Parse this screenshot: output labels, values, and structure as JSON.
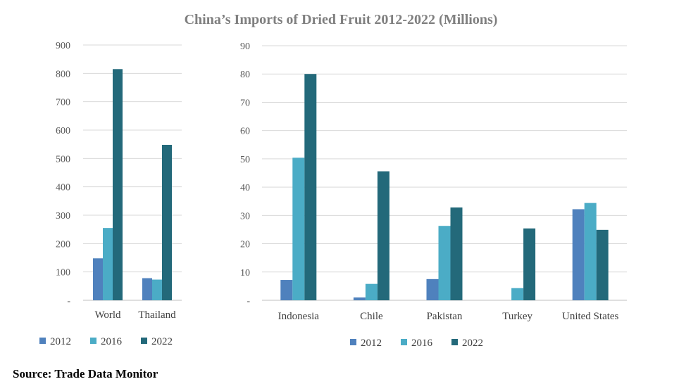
{
  "title": "China’s Imports of Dried Fruit 2012-2022 (Millions)",
  "source": "Source: Trade Data Monitor",
  "colors": {
    "2012": "#4f81bd",
    "2016": "#4bacc6",
    "2022": "#23697a",
    "title": "#7f7f7f",
    "grid": "#d9d9d9"
  },
  "chart_data": [
    {
      "type": "bar",
      "title": "",
      "xlabel": "",
      "ylabel": "",
      "ylim": [
        0,
        900
      ],
      "yticks": [
        0,
        100,
        200,
        300,
        400,
        500,
        600,
        700,
        800,
        900
      ],
      "ytick_labels": [
        "-",
        "100",
        "200",
        "300",
        "400",
        "500",
        "600",
        "700",
        "800",
        "900"
      ],
      "grid": true,
      "legend": "bottom",
      "categories": [
        "World",
        "Thailand"
      ],
      "series": [
        {
          "name": "2012",
          "values": [
            148,
            78
          ]
        },
        {
          "name": "2016",
          "values": [
            255,
            73
          ]
        },
        {
          "name": "2022",
          "values": [
            815,
            548
          ]
        }
      ]
    },
    {
      "type": "bar",
      "title": "",
      "xlabel": "",
      "ylabel": "",
      "ylim": [
        0,
        90
      ],
      "yticks": [
        0,
        10,
        20,
        30,
        40,
        50,
        60,
        70,
        80,
        90
      ],
      "ytick_labels": [
        "-",
        "10",
        "20",
        "30",
        "40",
        "50",
        "60",
        "70",
        "80",
        "90"
      ],
      "grid": true,
      "legend": "bottom",
      "categories": [
        "Indonesia",
        "Chile",
        "Pakistan",
        "Turkey",
        "United States"
      ],
      "series": [
        {
          "name": "2012",
          "values": [
            7.2,
            1.0,
            7.5,
            0,
            32.2
          ]
        },
        {
          "name": "2016",
          "values": [
            50.4,
            5.8,
            26.3,
            4.3,
            34.4
          ]
        },
        {
          "name": "2022",
          "values": [
            80.0,
            45.6,
            32.8,
            25.4,
            24.9
          ]
        }
      ]
    }
  ]
}
